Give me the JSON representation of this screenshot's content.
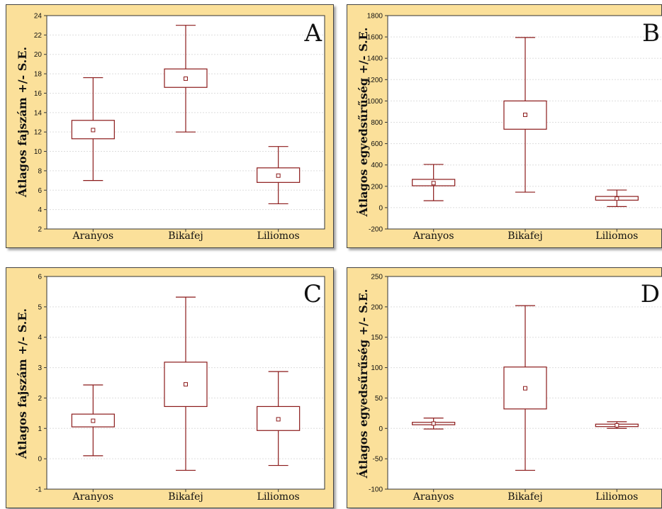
{
  "colors": {
    "panel_bg": "#fbe09a",
    "plot_bg": "#ffffff",
    "box": "#8b1a1a",
    "grid": "#dddddd"
  },
  "chart_data": [
    {
      "type": "box",
      "panel_label": "A",
      "ylabel": "Átlagos fajszám +/- S.E.",
      "ylim": [
        2,
        24
      ],
      "yticks": [
        "2",
        "4",
        "6",
        "8",
        "10",
        "12",
        "14",
        "16",
        "18",
        "20",
        "22",
        "24"
      ],
      "grid": true,
      "categories": [
        "Aranyos",
        "Bikafej",
        "Liliomos"
      ],
      "boxes": [
        {
          "mean": 12.2,
          "q1": 11.3,
          "q3": 13.2,
          "low": 7.0,
          "high": 17.6
        },
        {
          "mean": 17.5,
          "q1": 16.6,
          "q3": 18.5,
          "low": 12.0,
          "high": 23.0
        },
        {
          "mean": 7.5,
          "q1": 6.8,
          "q3": 8.3,
          "low": 4.6,
          "high": 10.5
        }
      ]
    },
    {
      "type": "box",
      "panel_label": "B",
      "ylabel": "Átlagos egyedsűrűség +/- S.E.",
      "ylim": [
        -200,
        1800
      ],
      "yticks": [
        "-200",
        "0",
        "200",
        "400",
        "600",
        "800",
        "1000",
        "1200",
        "1400",
        "1600",
        "1800"
      ],
      "grid": true,
      "categories": [
        "Aranyos",
        "Bikafej",
        "Liliomos"
      ],
      "boxes": [
        {
          "mean": 230,
          "q1": 205,
          "q3": 265,
          "low": 65,
          "high": 405
        },
        {
          "mean": 870,
          "q1": 735,
          "q3": 1000,
          "low": 145,
          "high": 1595
        },
        {
          "mean": 85,
          "q1": 70,
          "q3": 105,
          "low": 10,
          "high": 165
        }
      ]
    },
    {
      "type": "box",
      "panel_label": "C",
      "ylabel": "Átlagos fajszám +/- S.E.",
      "ylim": [
        -1,
        6
      ],
      "yticks": [
        "-1",
        "0",
        "1",
        "2",
        "3",
        "4",
        "5",
        "6"
      ],
      "grid": true,
      "categories": [
        "Aranyos",
        "Bikafej",
        "Liliomos"
      ],
      "boxes": [
        {
          "mean": 1.25,
          "q1": 1.05,
          "q3": 1.47,
          "low": 0.1,
          "high": 2.43
        },
        {
          "mean": 2.45,
          "q1": 1.72,
          "q3": 3.18,
          "low": -0.38,
          "high": 5.32
        },
        {
          "mean": 1.3,
          "q1": 0.93,
          "q3": 1.72,
          "low": -0.22,
          "high": 2.87
        }
      ]
    },
    {
      "type": "box",
      "panel_label": "D",
      "ylabel": "Átlagos egyedsűrűség +/- S.E.",
      "ylim": [
        -100,
        250
      ],
      "yticks": [
        "-100",
        "-50",
        "0",
        "50",
        "100",
        "150",
        "200",
        "250"
      ],
      "grid": true,
      "categories": [
        "Aranyos",
        "Bikafej",
        "Liliomos"
      ],
      "boxes": [
        {
          "mean": 8,
          "q1": 6,
          "q3": 10,
          "low": -1,
          "high": 17
        },
        {
          "mean": 66,
          "q1": 32,
          "q3": 101,
          "low": -69,
          "high": 202
        },
        {
          "mean": 5,
          "q1": 3,
          "q3": 7,
          "low": 0,
          "high": 11
        }
      ]
    }
  ]
}
